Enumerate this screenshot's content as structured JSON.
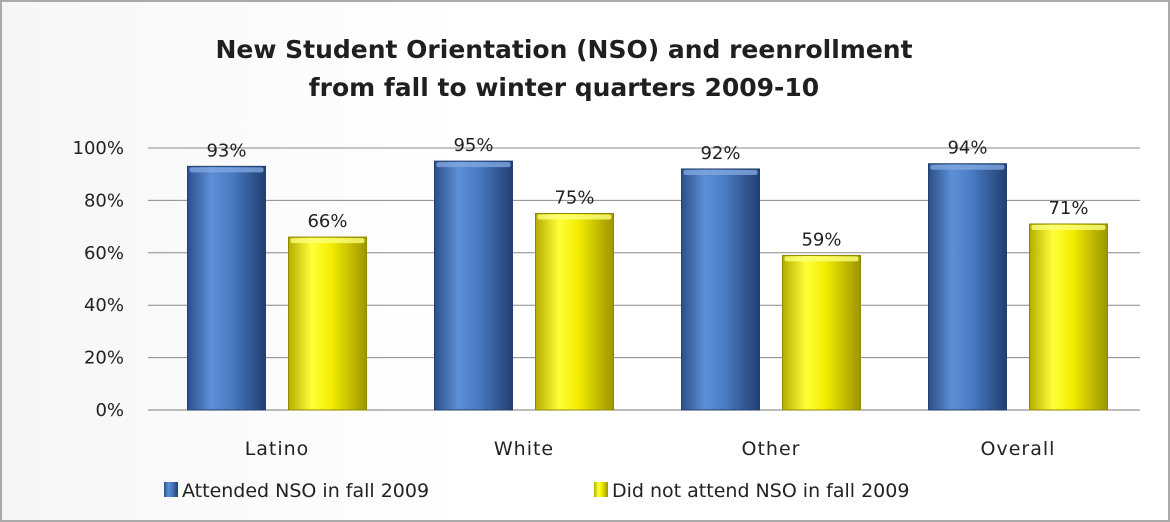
{
  "chart_data": {
    "type": "bar",
    "title_lines": [
      "New Student Orientation (NSO) and reenrollment",
      "from fall to winter quarters 2009-10"
    ],
    "categories": [
      "Latino",
      "White",
      "Other",
      "Overall"
    ],
    "series": [
      {
        "name": "Attended NSO in fall 2009",
        "values": [
          93,
          95,
          92,
          94
        ],
        "labels": [
          "93%",
          "95%",
          "92%",
          "94%"
        ],
        "color": "#3f6fb5"
      },
      {
        "name": "Did not attend NSO in fall 2009",
        "values": [
          66,
          75,
          59,
          71
        ],
        "labels": [
          "66%",
          "75%",
          "59%",
          "71%"
        ],
        "color": "#e8e000"
      }
    ],
    "y_ticks": [
      "0%",
      "20%",
      "40%",
      "60%",
      "80%",
      "100%"
    ],
    "y_tick_values": [
      0,
      20,
      40,
      60,
      80,
      100
    ],
    "ylim": [
      0,
      100
    ],
    "grid": true,
    "legend_position": "bottom-left"
  }
}
